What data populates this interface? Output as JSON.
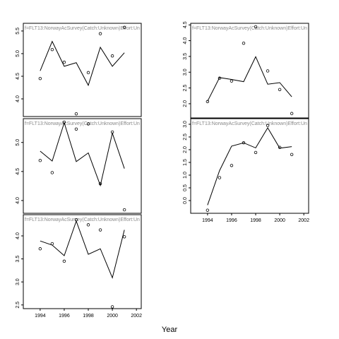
{
  "x_label": "Year",
  "chart_data": [
    {
      "type": "line",
      "title": "f=FLT13:NorwayAcSurvey(Catch:Unknown)Effort:Un",
      "x": [
        1994,
        1995,
        1996,
        1997,
        1998,
        1999,
        2000,
        2001
      ],
      "xlim": [
        1992.6,
        2002.4
      ],
      "ylim": [
        3.61,
        5.67
      ],
      "yticks": [
        {
          "value": 4,
          "label": "4.0"
        },
        {
          "value": 4.5,
          "label": "4.5"
        },
        {
          "value": 5,
          "label": "5.0"
        },
        {
          "value": 5.5,
          "label": "5.5"
        }
      ],
      "series": [
        {
          "kind": "line",
          "color": "#000000",
          "values": [
            4.62,
            5.27,
            4.72,
            4.8,
            4.3,
            5.14,
            4.72,
            5.02
          ]
        },
        {
          "kind": "points",
          "color": "#000000",
          "values": [
            4.45,
            5.09,
            4.81,
            3.67,
            4.58,
            5.44,
            4.95,
            5.58
          ]
        }
      ]
    },
    {
      "type": "line",
      "title": "f=FLT13:NorwayAcSurvey(Catch:Unknown)Effort:Un",
      "x": [
        1994,
        1995,
        1996,
        1997,
        1998,
        1999,
        2000,
        2001
      ],
      "xlim": [
        1992.6,
        2002.4
      ],
      "ylim": [
        3.78,
        5.41
      ],
      "yticks": [
        {
          "value": 4,
          "label": "4.0"
        },
        {
          "value": 4.5,
          "label": "4.5"
        },
        {
          "value": 5,
          "label": "5.0"
        }
      ],
      "series": [
        {
          "kind": "line",
          "color": "#000000",
          "values": [
            4.85,
            4.68,
            5.34,
            4.67,
            4.82,
            4.26,
            5.16,
            4.55
          ]
        },
        {
          "kind": "points",
          "color": "#000000",
          "values": [
            4.69,
            4.48,
            5.35,
            5.23,
            5.32,
            4.29,
            5.18,
            3.84
          ]
        }
      ]
    },
    {
      "type": "line",
      "title": "f=FLT13:NorwayAcSurvey(Catch:Unknown)Effort:Un",
      "x": [
        1994,
        1995,
        1996,
        1997,
        1998,
        1999,
        2000,
        2001
      ],
      "xlim": [
        1992.6,
        2002.4
      ],
      "ylim": [
        2.42,
        4.46
      ],
      "yticks": [
        {
          "value": 2.5,
          "label": "2.5"
        },
        {
          "value": 3,
          "label": "3.0"
        },
        {
          "value": 3.5,
          "label": "3.5"
        },
        {
          "value": 4,
          "label": "4.0"
        }
      ],
      "xticks": [
        1994,
        1996,
        1998,
        2000,
        2002
      ],
      "series": [
        {
          "kind": "line",
          "color": "#000000",
          "values": [
            3.89,
            3.8,
            3.57,
            4.32,
            3.6,
            3.72,
            3.09,
            4.13
          ]
        },
        {
          "kind": "points",
          "color": "#000000",
          "values": [
            3.72,
            3.83,
            3.45,
            4.35,
            4.24,
            4.13,
            2.46,
            3.98
          ]
        }
      ]
    },
    {
      "type": "line",
      "title": "f=FLT13:NorwayAcSurvey(Catch:Unknown)Effort:Un",
      "x": [
        1994,
        1995,
        1996,
        1997,
        1998,
        1999,
        2000,
        2001
      ],
      "xlim": [
        1992.6,
        2002.4
      ],
      "ylim": [
        1.55,
        4.55
      ],
      "yticks": [
        {
          "value": 2,
          "label": "2.0"
        },
        {
          "value": 2.5,
          "label": "2.5"
        },
        {
          "value": 3,
          "label": "3.0"
        },
        {
          "value": 3.5,
          "label": "3.5"
        },
        {
          "value": 4,
          "label": "4.0"
        },
        {
          "value": 4.5,
          "label": "4.5"
        }
      ],
      "series": [
        {
          "kind": "line",
          "color": "#000000",
          "values": [
            2.08,
            2.83,
            2.77,
            2.7,
            3.49,
            2.62,
            2.67,
            2.22
          ]
        },
        {
          "kind": "points",
          "color": "#000000",
          "values": [
            2.07,
            2.81,
            2.72,
            3.92,
            4.44,
            3.04,
            2.45,
            1.69
          ]
        }
      ]
    },
    {
      "type": "line",
      "title": "f=FLT13:NorwayAcSurvey(Catch:Unknown)Effort:Un",
      "x": [
        1994,
        1995,
        1996,
        1997,
        1998,
        1999,
        2000,
        2001
      ],
      "xlim": [
        1992.6,
        2002.4
      ],
      "ylim": [
        -0.5,
        3.22
      ],
      "yticks": [
        {
          "value": 0,
          "label": "0.0"
        },
        {
          "value": 0.5,
          "label": "0.5"
        },
        {
          "value": 1,
          "label": "1.0"
        },
        {
          "value": 1.5,
          "label": "1.5"
        },
        {
          "value": 2,
          "label": "2.0"
        },
        {
          "value": 2.5,
          "label": "2.5"
        },
        {
          "value": 3,
          "label": "3.0"
        }
      ],
      "xticks": [
        1994,
        1996,
        1998,
        2000,
        2002
      ],
      "series": [
        {
          "kind": "line",
          "color": "#000000",
          "values": [
            -0.18,
            1.18,
            2.14,
            2.27,
            2.07,
            2.86,
            2.06,
            2.12
          ]
        },
        {
          "kind": "points",
          "color": "#000000",
          "values": [
            -0.38,
            0.9,
            1.38,
            2.27,
            1.89,
            2.95,
            2.09,
            1.81
          ]
        }
      ]
    }
  ]
}
